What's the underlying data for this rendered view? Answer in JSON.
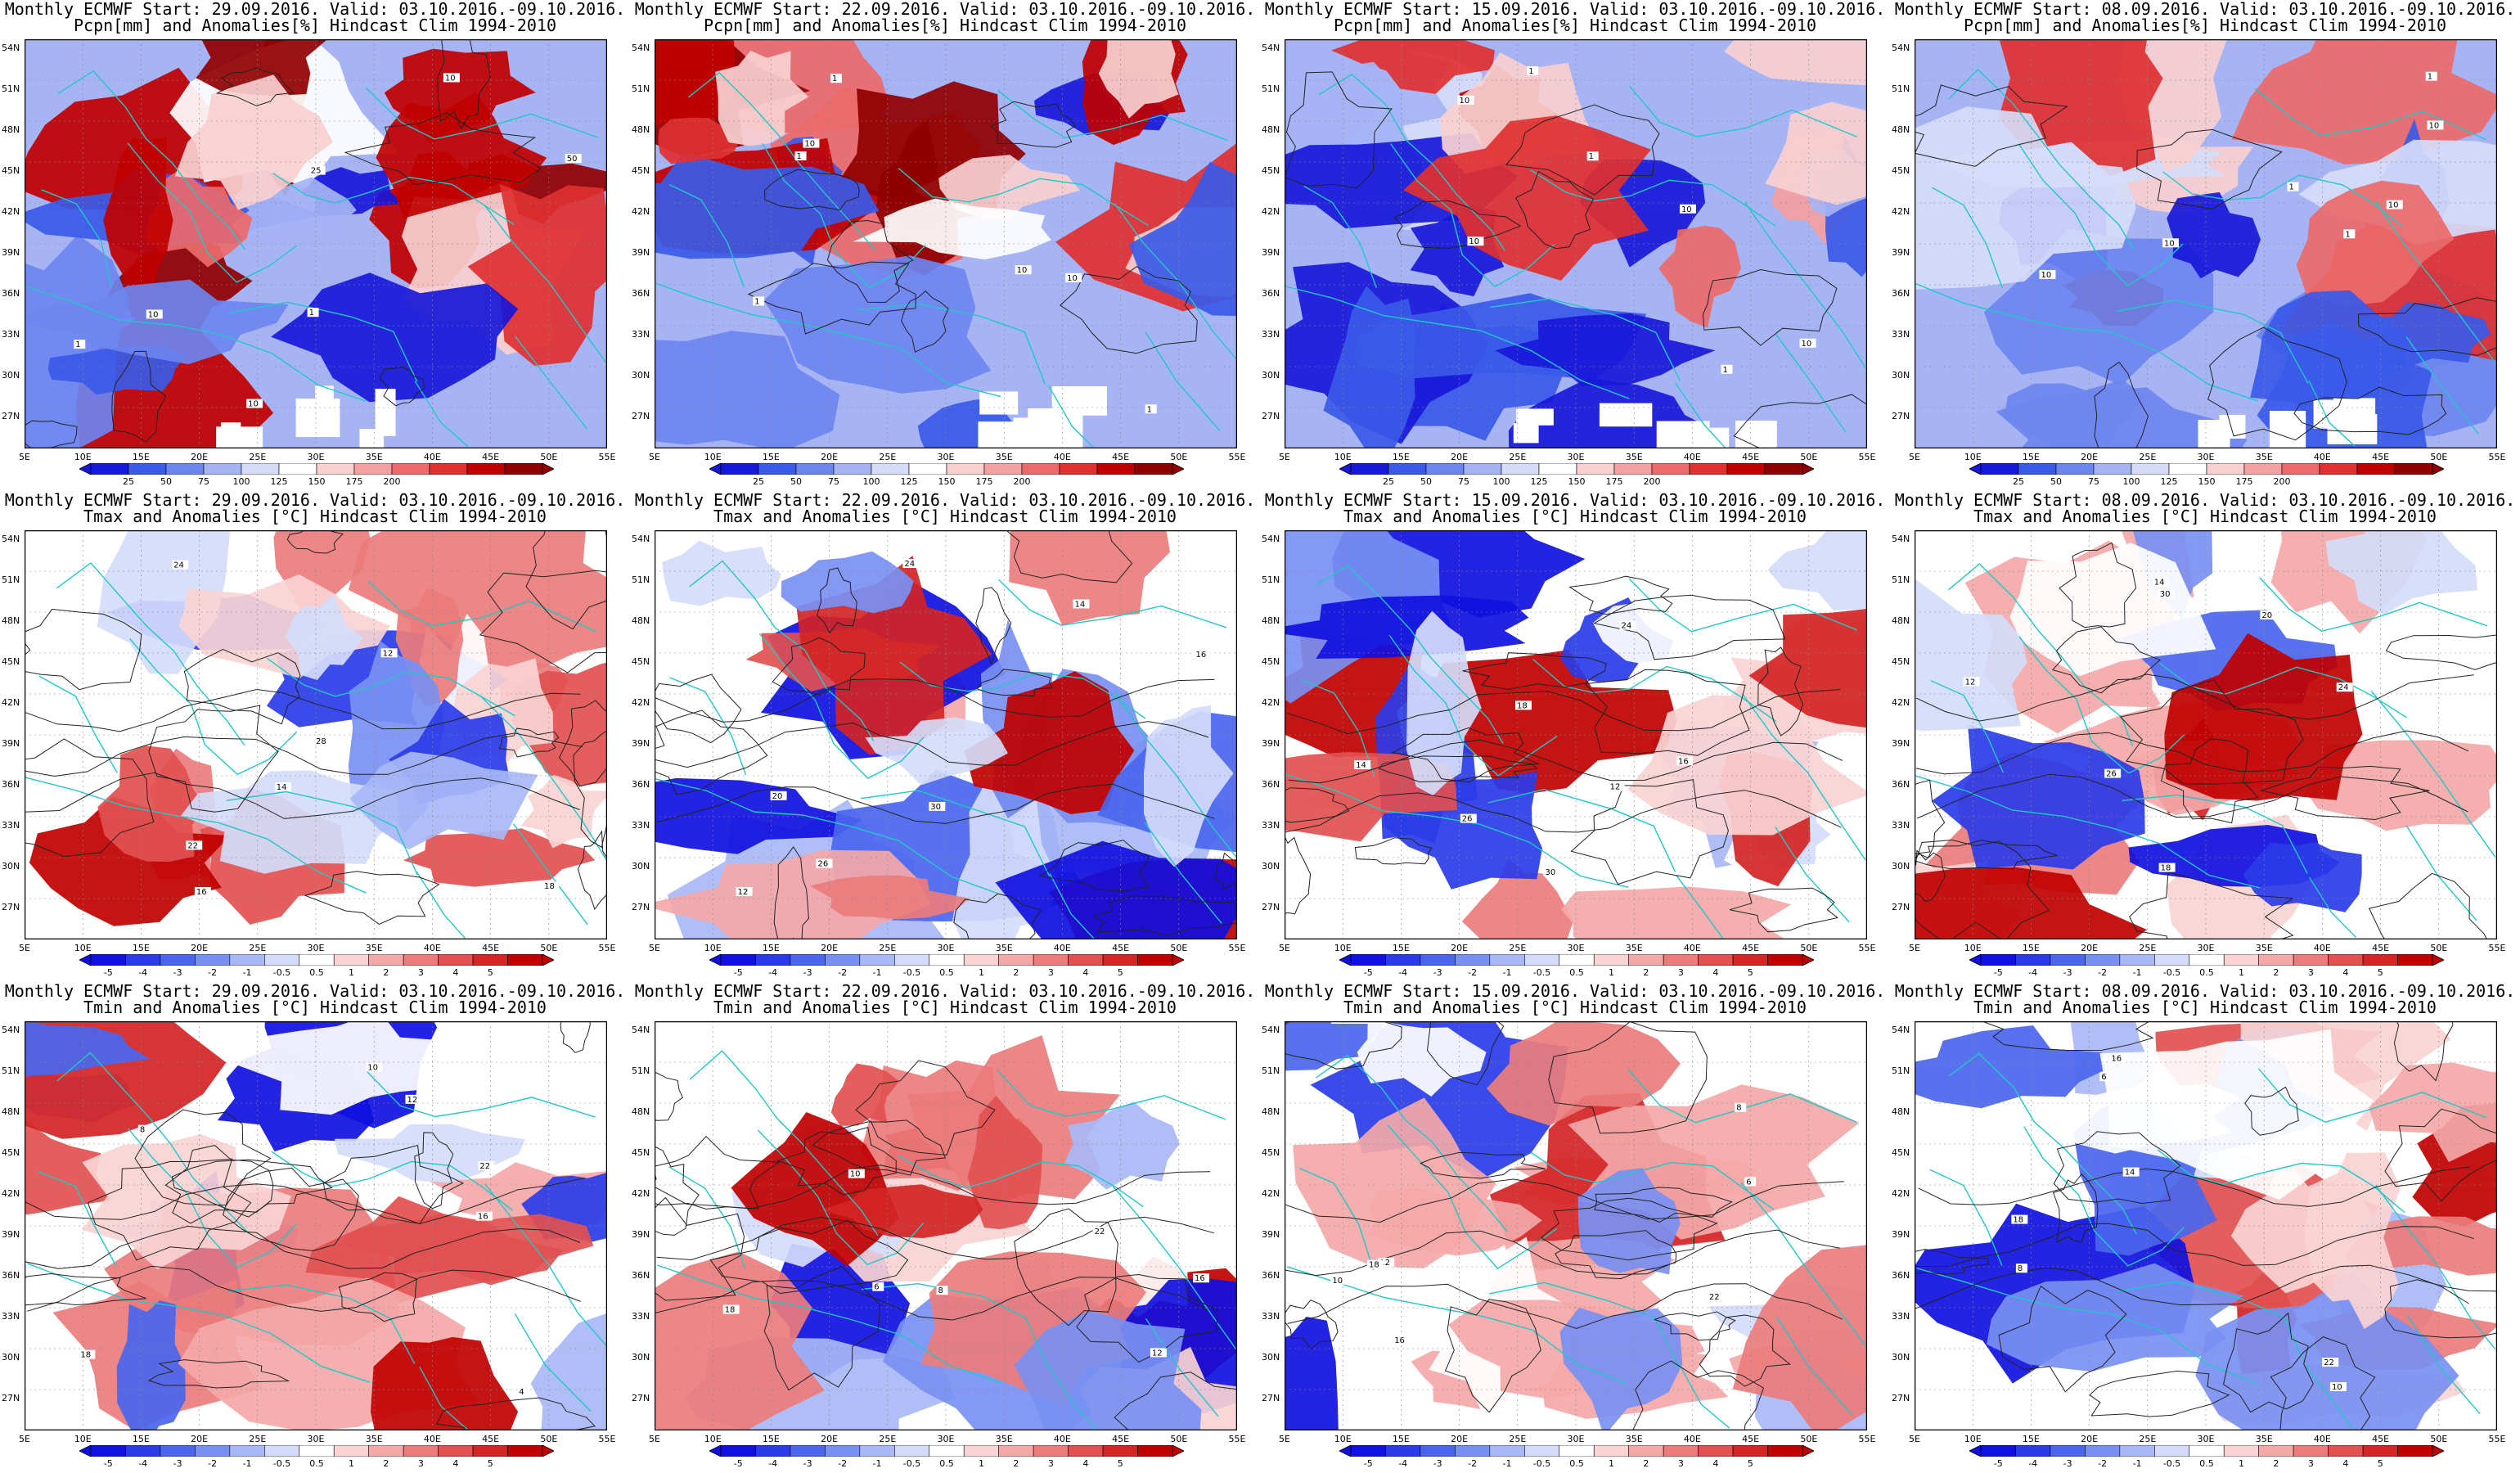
{
  "colors": {
    "precip_scale": [
      "#1818d8",
      "#3a5ae8",
      "#6c86f0",
      "#a6b4f4",
      "#d6dcf8",
      "#ffffff",
      "#f8d0d0",
      "#f4a0a0",
      "#ec6a6a",
      "#e03030",
      "#c00000",
      "#900000"
    ],
    "temp_scale": [
      "#1010e0",
      "#2a3ce8",
      "#4a66ee",
      "#7890f2",
      "#a8b8f6",
      "#d4dcfa",
      "#ffffff",
      "#fad4d4",
      "#f4a8a8",
      "#ec7c7c",
      "#e25050",
      "#d42424",
      "#c00000"
    ],
    "coast": "#20c8c8",
    "contour": "#222222"
  },
  "lat_labels": [
    "54N",
    "51N",
    "48N",
    "45N",
    "42N",
    "39N",
    "36N",
    "33N",
    "30N",
    "27N"
  ],
  "lon_labels": [
    "5E",
    "10E",
    "15E",
    "20E",
    "25E",
    "30E",
    "35E",
    "40E",
    "45E",
    "50E",
    "55E"
  ],
  "colorbars": {
    "precip": [
      "25",
      "50",
      "75",
      "100",
      "125",
      "150",
      "175",
      "200"
    ],
    "temp": [
      "-5",
      "-4",
      "-3",
      "-2",
      "-1",
      "-0.5",
      "0.5",
      "1",
      "2",
      "3",
      "4",
      "5"
    ]
  },
  "rows": [
    {
      "variable": "precip",
      "panels": [
        {
          "line1": "Monthly ECMWF Start: 29.09.2016. Valid: 03.10.2016.-09.10.2016.",
          "line2": "Pcpn[mm] and Anomalies[%] Hindcast Clim 1994-2010",
          "labels": [
            "10",
            "50",
            "25",
            "1",
            "1",
            "10",
            "10"
          ]
        },
        {
          "line1": "Monthly ECMWF Start: 22.09.2016. Valid: 03.10.2016.-09.10.2016.",
          "line2": "Pcpn[mm] and Anomalies[%] Hindcast Clim 1994-2010",
          "labels": [
            "10",
            "1",
            "10",
            "1",
            "1",
            "10",
            "1"
          ]
        },
        {
          "line1": "Monthly ECMWF Start: 15.09.2016. Valid: 03.10.2016.-09.10.2016.",
          "line2": "Pcpn[mm] and Anomalies[%] Hindcast Clim 1994-2010",
          "labels": [
            "10",
            "10",
            "1",
            "10",
            "1",
            "10",
            "1"
          ]
        },
        {
          "line1": "Monthly ECMWF Start: 08.09.2016. Valid: 03.10.2016.-09.10.2016.",
          "line2": "Pcpn[mm] and Anomalies[%] Hindcast Clim 1994-2010",
          "labels": [
            "10",
            "10",
            "10",
            "1",
            "1",
            "10",
            "1"
          ]
        }
      ]
    },
    {
      "variable": "temp",
      "panels": [
        {
          "line1": "Monthly ECMWF Start: 29.09.2016. Valid: 03.10.2016.-09.10.2016.",
          "line2": "Tmax and Anomalies [°C] Hindcast Clim 1994-2010",
          "labels": [
            "12",
            "14",
            "16",
            "18",
            "22",
            "24",
            "28"
          ]
        },
        {
          "line1": "Monthly ECMWF Start: 22.09.2016. Valid: 03.10.2016.-09.10.2016.",
          "line2": "Tmax and Anomalies [°C] Hindcast Clim 1994-2010",
          "labels": [
            "12",
            "14",
            "16",
            "20",
            "24",
            "26",
            "30"
          ]
        },
        {
          "line1": "Monthly ECMWF Start: 15.09.2016. Valid: 03.10.2016.-09.10.2016.",
          "line2": "Tmax and Anomalies [°C] Hindcast Clim 1994-2010",
          "labels": [
            "12",
            "14",
            "16",
            "18",
            "24",
            "26",
            "30"
          ]
        },
        {
          "line1": "Monthly ECMWF Start: 08.09.2016. Valid: 03.10.2016.-09.10.2016.",
          "line2": "Tmax and Anomalies [°C] Hindcast Clim 1994-2010",
          "labels": [
            "12",
            "14",
            "18",
            "20",
            "24",
            "26",
            "30"
          ]
        }
      ]
    },
    {
      "variable": "temp",
      "panels": [
        {
          "line1": "Monthly ECMWF Start: 29.09.2016. Valid: 03.10.2016.-09.10.2016.",
          "line2": "Tmin and Anomalies [°C] Hindcast Clim 1994-2010",
          "labels": [
            "4",
            "8",
            "10",
            "12",
            "16",
            "18",
            "22"
          ]
        },
        {
          "line1": "Monthly ECMWF Start: 22.09.2016. Valid: 03.10.2016.-09.10.2016.",
          "line2": "Tmin and Anomalies [°C] Hindcast Clim 1994-2010",
          "labels": [
            "6",
            "8",
            "10",
            "12",
            "16",
            "18",
            "22"
          ]
        },
        {
          "line1": "Monthly ECMWF Start: 15.09.2016. Valid: 03.10.2016.-09.10.2016.",
          "line2": "Tmin and Anomalies [°C] Hindcast Clim 1994-2010",
          "labels": [
            "6",
            "8",
            "10",
            "12",
            "16",
            "18",
            "22"
          ]
        },
        {
          "line1": "Monthly ECMWF Start: 08.09.2016. Valid: 03.10.2016.-09.10.2016.",
          "line2": "Tmin and Anomalies [°C] Hindcast Clim 1994-2010",
          "labels": [
            "6",
            "8",
            "10",
            "14",
            "16",
            "18",
            "22"
          ]
        }
      ]
    }
  ]
}
